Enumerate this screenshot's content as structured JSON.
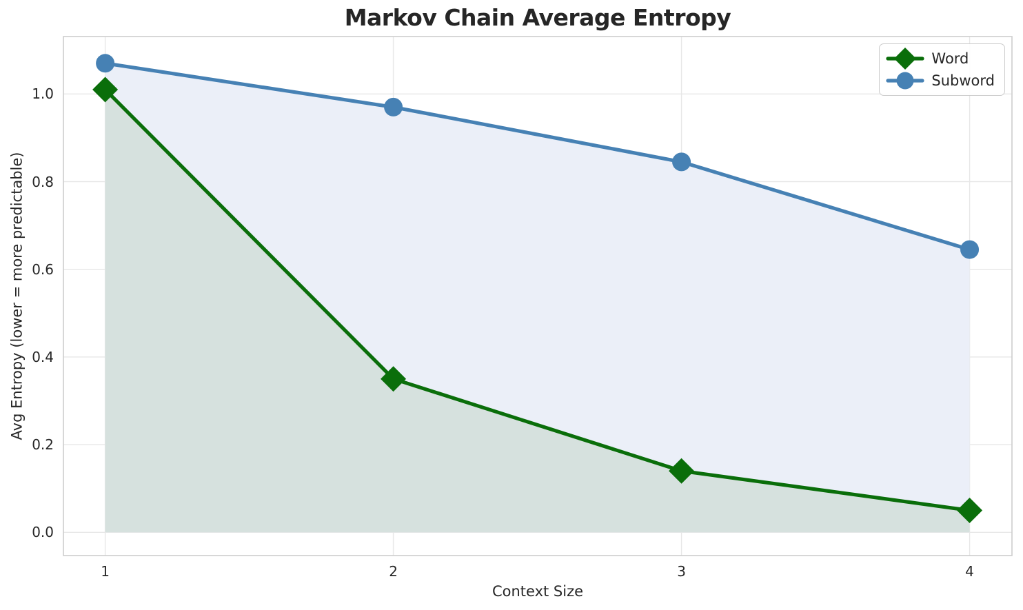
{
  "title": "Markov Chain Average Entropy",
  "chart_data": {
    "type": "line",
    "title": "Markov Chain Average Entropy",
    "xlabel": "Context Size",
    "ylabel": "Avg Entropy (lower = more predictable)",
    "x": [
      1,
      2,
      3,
      4
    ],
    "series": [
      {
        "name": "Word",
        "values": [
          1.01,
          0.35,
          0.14,
          0.05
        ],
        "color": "#0a6e0a",
        "marker": "diamond",
        "area_fill": "#d6e1de",
        "filled_to_zero": true
      },
      {
        "name": "Subword",
        "values": [
          1.07,
          0.97,
          0.845,
          0.645
        ],
        "color": "#4681b4",
        "marker": "circle",
        "area_fill": "#ebeff8",
        "filled_to_zero": true
      }
    ],
    "xticks": [
      "1",
      "2",
      "3",
      "4"
    ],
    "yticks": [
      "0.0",
      "0.2",
      "0.4",
      "0.6",
      "0.8",
      "1.0"
    ],
    "ytick_values": [
      0.0,
      0.2,
      0.4,
      0.6,
      0.8,
      1.0
    ],
    "xtick_values": [
      1,
      2,
      3,
      4
    ],
    "xlim": [
      0.855,
      4.147
    ],
    "ylim": [
      -0.053,
      1.131
    ],
    "grid": true,
    "grid_color": "#e7e7e7",
    "spine_color": "#cdcdcd",
    "text_color": "#262626",
    "legend_position": "upper right",
    "legend_labels": [
      "Word",
      "Subword"
    ]
  }
}
